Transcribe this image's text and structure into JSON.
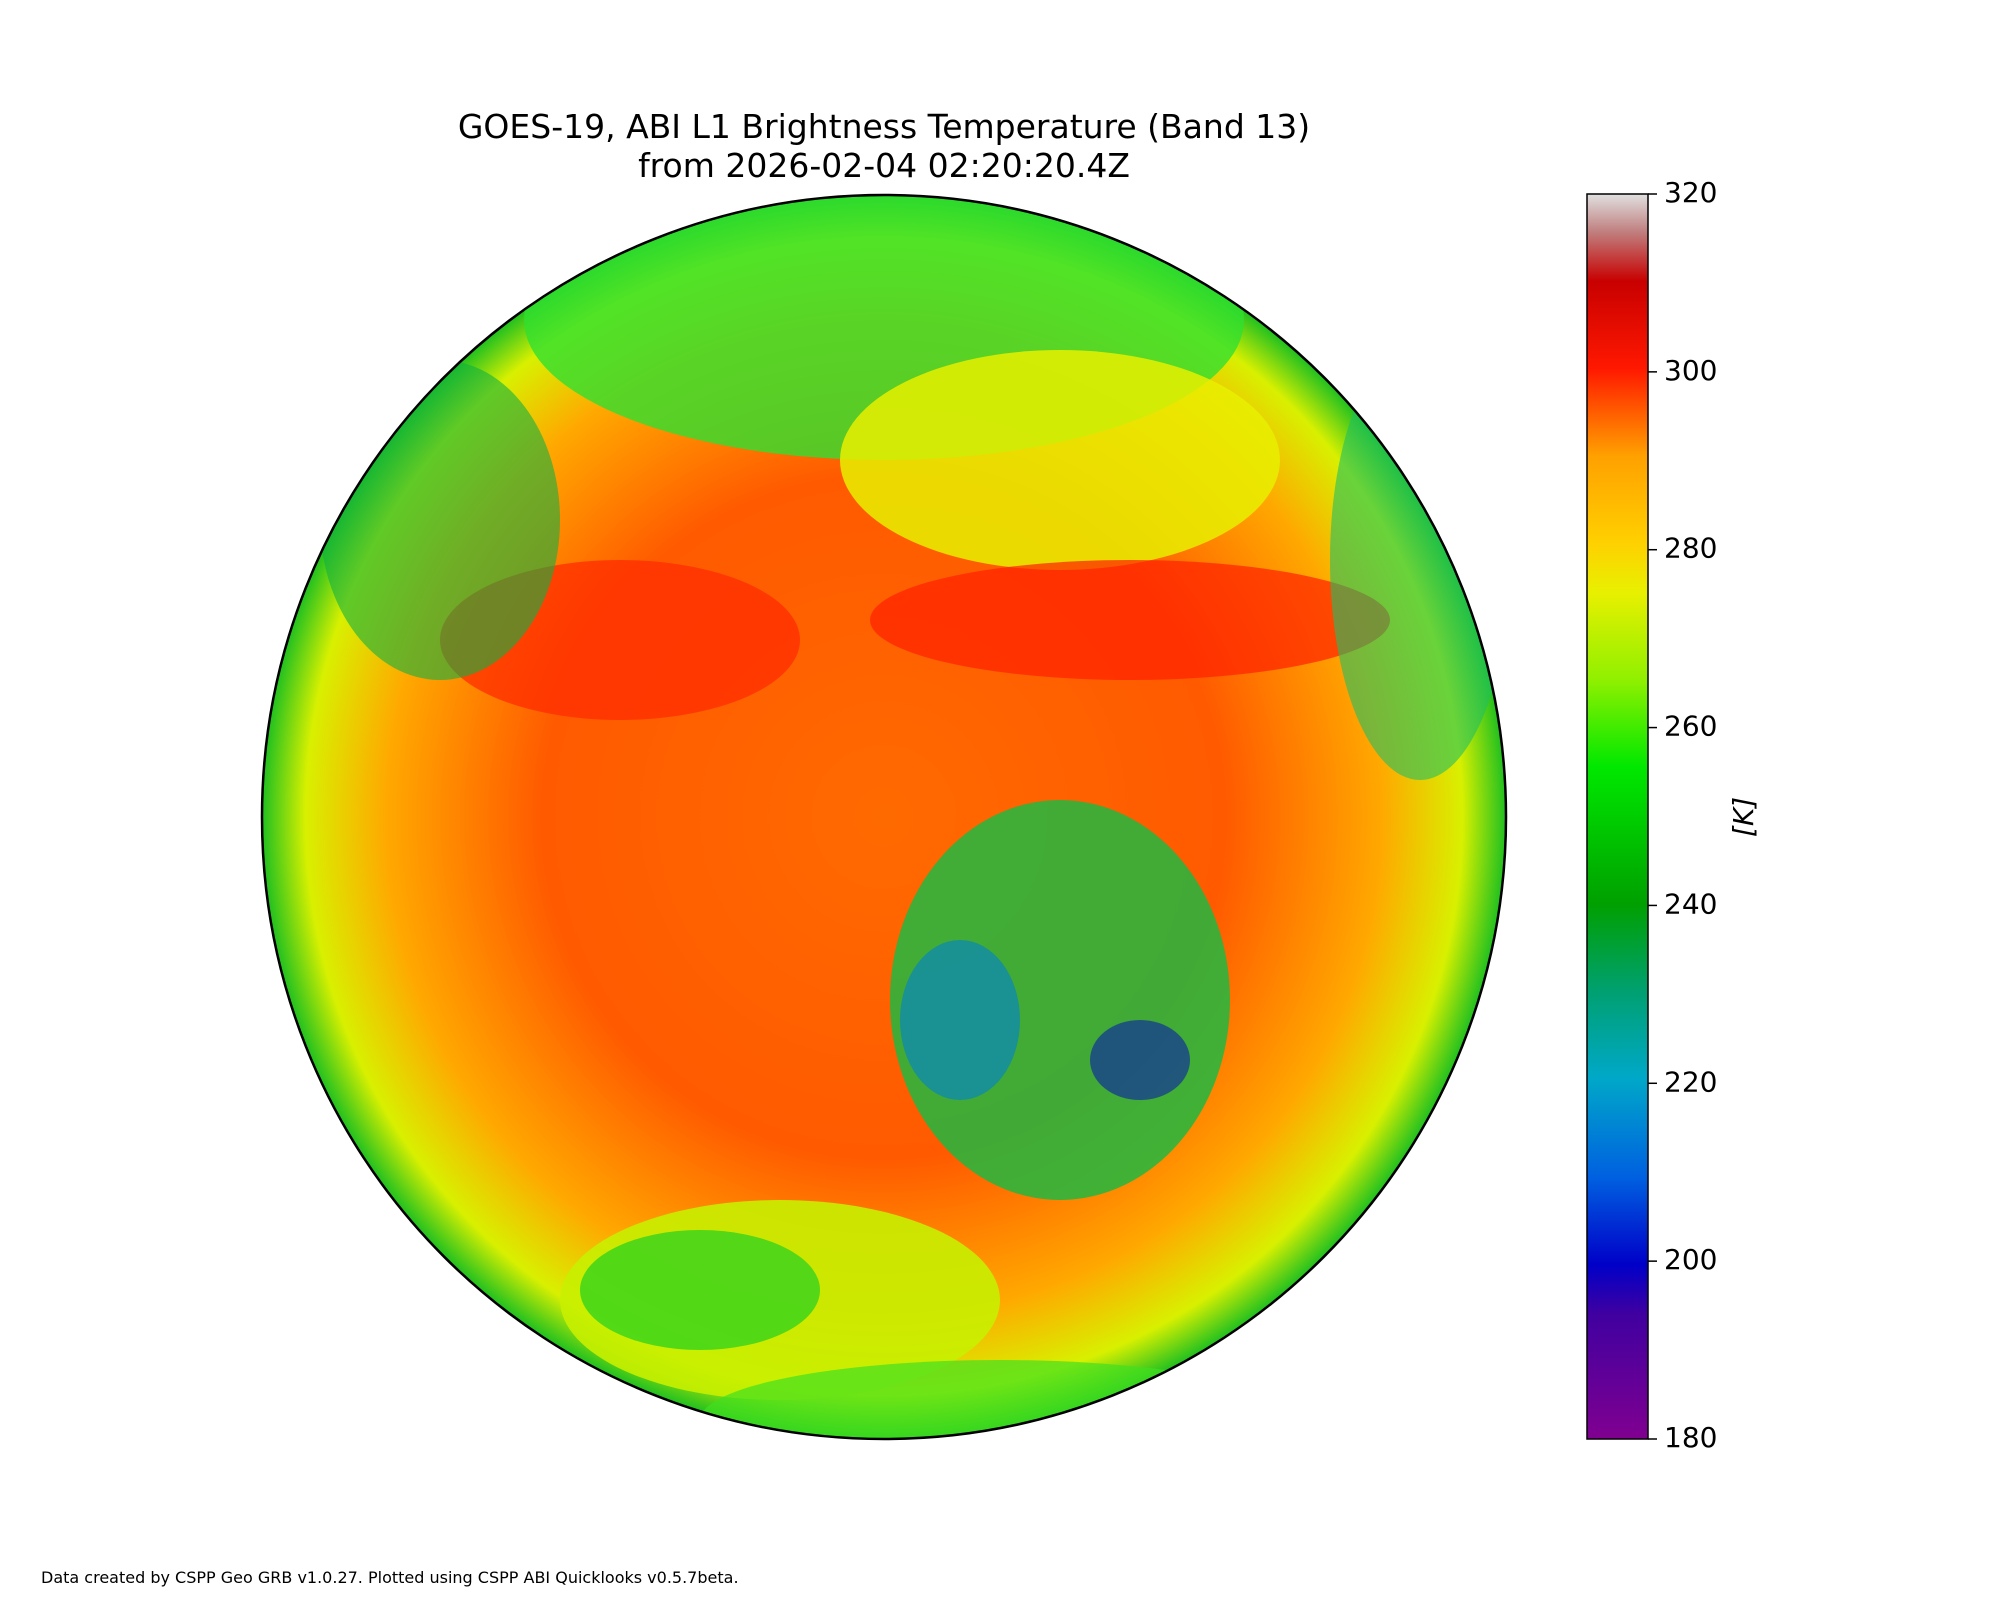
{
  "title": [
    "GOES-19, ABI L1 Brightness Temperature (Band 13)",
    "from 2026-02-04 02:20:20.4Z"
  ],
  "colorbar": {
    "label": "[K]",
    "lim": [
      180,
      320
    ],
    "ticks": [
      180,
      200,
      220,
      240,
      260,
      280,
      300,
      320
    ]
  },
  "footer": "Data created by CSPP Geo GRB v1.0.27. Plotted using CSPP ABI Quicklooks v0.5.7beta."
}
